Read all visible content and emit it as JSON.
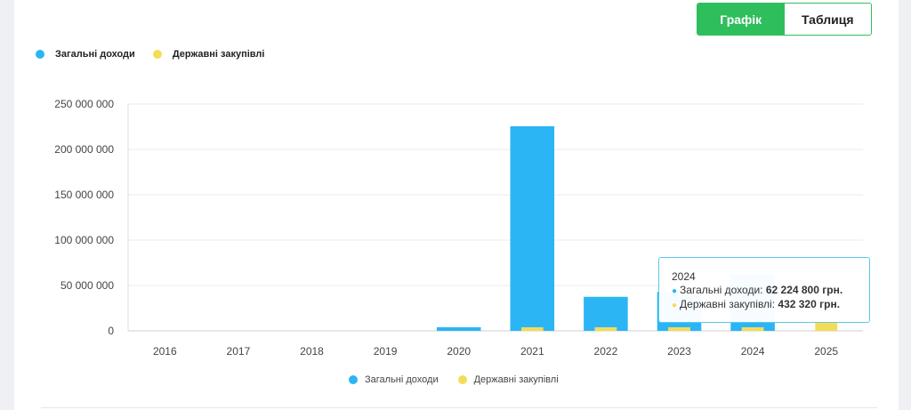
{
  "view_toggle": {
    "chart_label": "Графік",
    "table_label": "Таблиця",
    "active": "chart"
  },
  "legend": [
    {
      "name": "Загальні доходи",
      "color": "#2bb5f5"
    },
    {
      "name": "Державні закупівлі",
      "color": "#f5dc57"
    }
  ],
  "tooltip": {
    "year": "2024",
    "rows": [
      {
        "label": "Загальні доходи:",
        "value": "62 224 800 грн.",
        "color": "#2bb5f5"
      },
      {
        "label": "Державні закупівлі:",
        "value": "432 320 грн.",
        "color": "#f5dc57"
      }
    ]
  },
  "chart_data": {
    "type": "bar",
    "categories": [
      "2016",
      "2017",
      "2018",
      "2019",
      "2020",
      "2021",
      "2022",
      "2023",
      "2024",
      "2025"
    ],
    "series": [
      {
        "name": "Загальні доходи",
        "color": "#2bb5f5",
        "values": [
          0,
          0,
          0,
          0,
          4000000,
          225500000,
          37500000,
          43000000,
          62224800,
          0
        ]
      },
      {
        "name": "Державні закупівлі",
        "color": "#f5dc57",
        "values": [
          0,
          0,
          0,
          0,
          0,
          3000000,
          3000000,
          3000000,
          432320,
          9000000
        ]
      }
    ],
    "ylim": [
      0,
      250000000
    ],
    "yticks": [
      0,
      50000000,
      100000000,
      150000000,
      200000000,
      250000000
    ],
    "ytick_labels": [
      "0",
      "50 000 000",
      "100 000 000",
      "150 000 000",
      "200 000 000",
      "250 000 000"
    ],
    "grid": true,
    "legend_position": "top-left and bottom-center"
  }
}
